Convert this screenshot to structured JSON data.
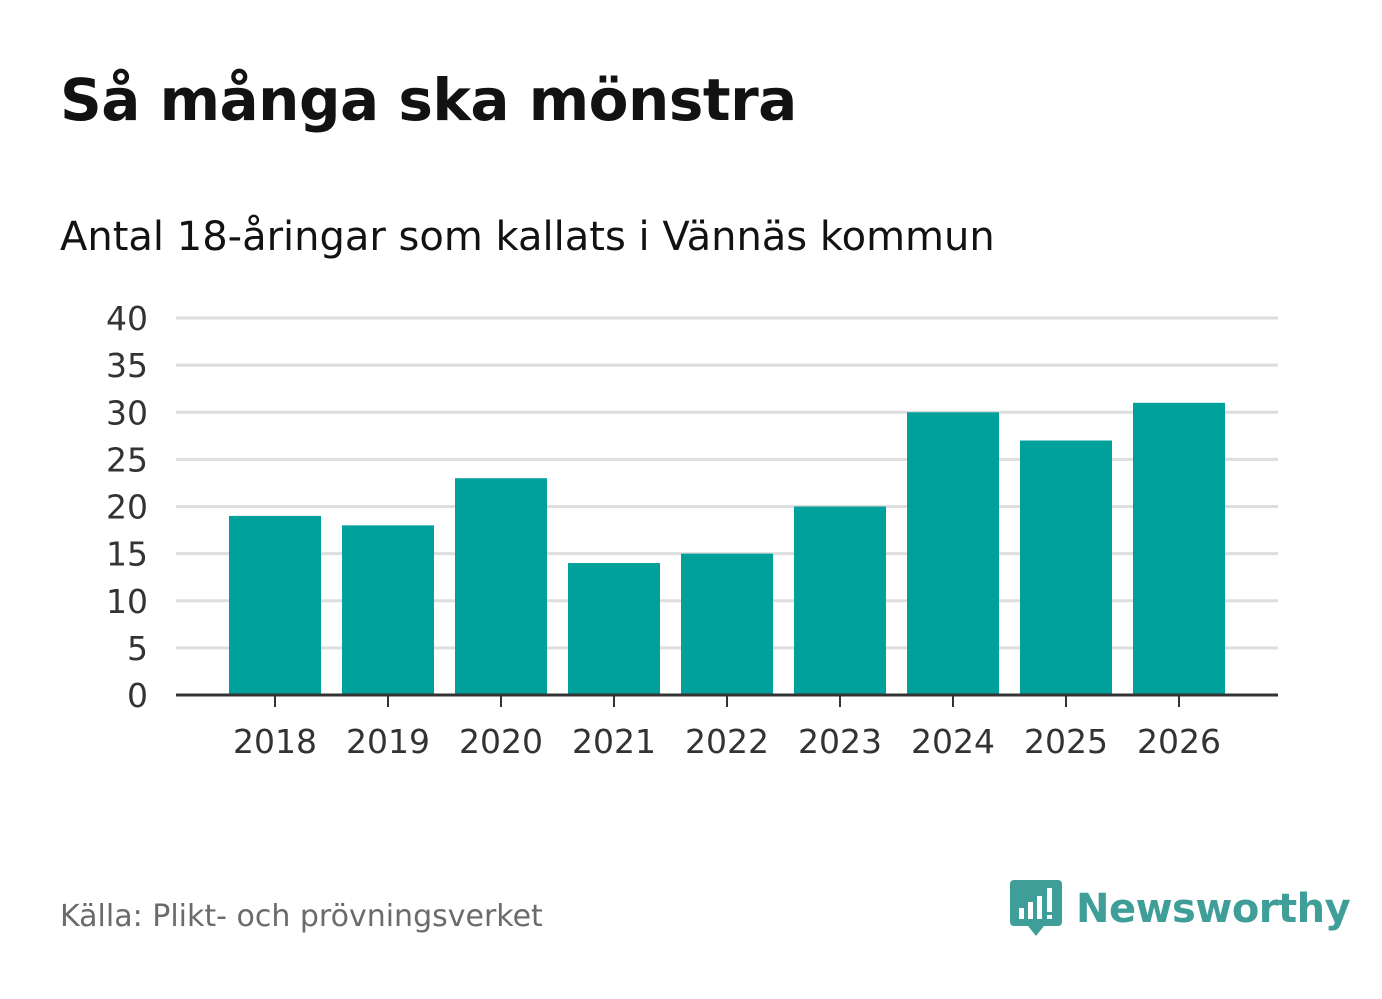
{
  "chart_data": {
    "type": "bar",
    "title": "Så många ska mönstra",
    "subtitle": "Antal 18-åringar som kallats i Vännäs kommun",
    "categories": [
      "2018",
      "2019",
      "2020",
      "2021",
      "2022",
      "2023",
      "2024",
      "2025",
      "2026"
    ],
    "values": [
      19,
      18,
      23,
      14,
      15,
      20,
      30,
      27,
      31
    ],
    "xlabel": "",
    "ylabel": "",
    "ylim": [
      0,
      40
    ],
    "yticks": [
      "0",
      "5",
      "10",
      "15",
      "20",
      "25",
      "30",
      "35",
      "40"
    ],
    "grid": true,
    "bar_color": "#00a19a"
  },
  "footer": {
    "source": "Källa: Plikt- och prövningsverket",
    "brand": "Newsworthy",
    "brand_icon": "bar-chart-speech-bubble-icon",
    "brand_color": "#3f9e98"
  }
}
